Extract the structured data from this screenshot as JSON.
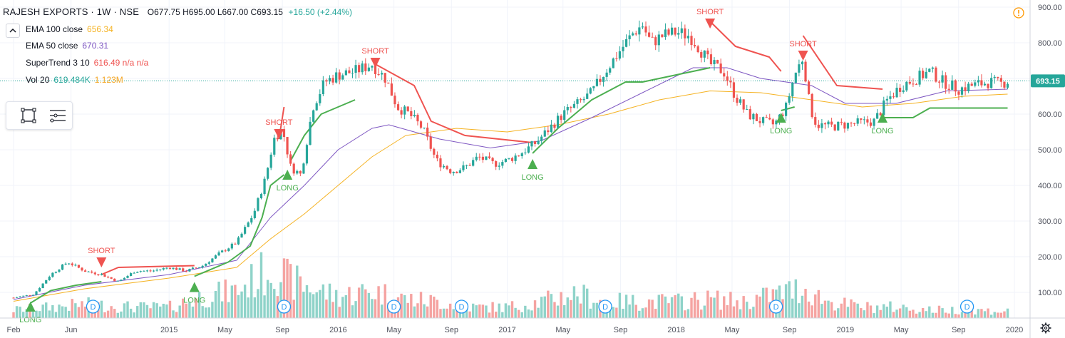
{
  "header": {
    "symbol": "RAJESH EXPORTS · 1W · NSE",
    "ohlc": "O677.75  H695.00  L667.00  C693.15",
    "change": "+16.50 (+2.44%)"
  },
  "indicators": [
    {
      "name": "EMA 100 close",
      "value": "656.34",
      "color": "#f5b324"
    },
    {
      "name": "EMA 50 close",
      "value": "670.31",
      "color": "#7e57c2"
    },
    {
      "name": "SuperTrend 3 10",
      "value": "616.49  n/a  n/a",
      "color": "#ef5350"
    },
    {
      "name": "Vol 20",
      "value": "619.484K",
      "value2": "1.123M",
      "color": "#26a69a",
      "color2": "#f5a623"
    }
  ],
  "price_tag": "693.15",
  "colors": {
    "up": "#26a69a",
    "down": "#ef5350",
    "vol_up": "#8fd3c9",
    "vol_down": "#f5a3a1",
    "ema100": "#f5b324",
    "ema50": "#7e57c2",
    "st_long": "#4caf50",
    "st_short": "#ef5350",
    "grid": "#f0f3fa",
    "axis_text": "#50535e"
  },
  "icons": [
    "warning-icon",
    "gear-icon",
    "rectangle-tool-icon",
    "hamburger-tool-icon",
    "chevron-collapse-icon"
  ],
  "chart_data": {
    "type": "candlestick",
    "title": "",
    "y_ticks": [
      "900.00",
      "800.00",
      "700.00",
      "600.00",
      "500.00",
      "400.00",
      "300.00",
      "200.00",
      "100.00"
    ],
    "y_tick_values": [
      900,
      800,
      700,
      600,
      500,
      400,
      300,
      200,
      100
    ],
    "ylim": [
      0,
      914
    ],
    "xlim": [
      2014.08,
      2020.0
    ],
    "x_ticks": [
      {
        "label": "Feb",
        "t": 2014.08
      },
      {
        "label": "Jun",
        "t": 2014.42
      },
      {
        "label": "2015",
        "t": 2015.0
      },
      {
        "label": "May",
        "t": 2015.33
      },
      {
        "label": "Sep",
        "t": 2015.67
      },
      {
        "label": "2016",
        "t": 2016.0
      },
      {
        "label": "May",
        "t": 2016.33
      },
      {
        "label": "Sep",
        "t": 2016.67
      },
      {
        "label": "2017",
        "t": 2017.0
      },
      {
        "label": "May",
        "t": 2017.33
      },
      {
        "label": "Sep",
        "t": 2017.67
      },
      {
        "label": "2018",
        "t": 2018.0
      },
      {
        "label": "May",
        "t": 2018.33
      },
      {
        "label": "Sep",
        "t": 2018.67
      },
      {
        "label": "2019",
        "t": 2019.0
      },
      {
        "label": "May",
        "t": 2019.33
      },
      {
        "label": "Sep",
        "t": 2019.67
      },
      {
        "label": "2020",
        "t": 2020.0
      }
    ],
    "price_path": [
      [
        2014.08,
        85
      ],
      [
        2014.2,
        95
      ],
      [
        2014.3,
        150
      ],
      [
        2014.4,
        185
      ],
      [
        2014.5,
        160
      ],
      [
        2014.6,
        150
      ],
      [
        2014.7,
        130
      ],
      [
        2014.8,
        160
      ],
      [
        2014.9,
        160
      ],
      [
        2015.0,
        170
      ],
      [
        2015.1,
        160
      ],
      [
        2015.2,
        175
      ],
      [
        2015.3,
        210
      ],
      [
        2015.4,
        240
      ],
      [
        2015.5,
        320
      ],
      [
        2015.57,
        420
      ],
      [
        2015.62,
        530
      ],
      [
        2015.67,
        560
      ],
      [
        2015.72,
        450
      ],
      [
        2015.78,
        430
      ],
      [
        2015.85,
        620
      ],
      [
        2015.92,
        690
      ],
      [
        2016.0,
        710
      ],
      [
        2016.1,
        720
      ],
      [
        2016.2,
        740
      ],
      [
        2016.28,
        700
      ],
      [
        2016.35,
        620
      ],
      [
        2016.42,
        600
      ],
      [
        2016.5,
        560
      ],
      [
        2016.58,
        470
      ],
      [
        2016.67,
        440
      ],
      [
        2016.75,
        450
      ],
      [
        2016.83,
        480
      ],
      [
        2016.92,
        460
      ],
      [
        2017.0,
        470
      ],
      [
        2017.08,
        490
      ],
      [
        2017.17,
        520
      ],
      [
        2017.25,
        560
      ],
      [
        2017.33,
        600
      ],
      [
        2017.42,
        630
      ],
      [
        2017.5,
        660
      ],
      [
        2017.58,
        720
      ],
      [
        2017.67,
        780
      ],
      [
        2017.75,
        830
      ],
      [
        2017.8,
        850
      ],
      [
        2017.85,
        800
      ],
      [
        2017.92,
        820
      ],
      [
        2018.0,
        830
      ],
      [
        2018.08,
        820
      ],
      [
        2018.13,
        790
      ],
      [
        2018.2,
        740
      ],
      [
        2018.28,
        720
      ],
      [
        2018.35,
        650
      ],
      [
        2018.42,
        600
      ],
      [
        2018.5,
        580
      ],
      [
        2018.58,
        570
      ],
      [
        2018.65,
        620
      ],
      [
        2018.7,
        710
      ],
      [
        2018.75,
        760
      ],
      [
        2018.79,
        620
      ],
      [
        2018.83,
        570
      ],
      [
        2018.92,
        565
      ],
      [
        2019.0,
        570
      ],
      [
        2019.08,
        575
      ],
      [
        2019.17,
        580
      ],
      [
        2019.25,
        640
      ],
      [
        2019.33,
        680
      ],
      [
        2019.42,
        700
      ],
      [
        2019.5,
        720
      ],
      [
        2019.58,
        690
      ],
      [
        2019.67,
        670
      ],
      [
        2019.75,
        680
      ],
      [
        2019.85,
        690
      ],
      [
        2019.92,
        685
      ],
      [
        2019.96,
        693
      ]
    ],
    "ema100": [
      [
        2014.08,
        75
      ],
      [
        2014.5,
        110
      ],
      [
        2015.0,
        140
      ],
      [
        2015.4,
        170
      ],
      [
        2015.6,
        250
      ],
      [
        2015.8,
        320
      ],
      [
        2016.0,
        400
      ],
      [
        2016.2,
        480
      ],
      [
        2016.4,
        540
      ],
      [
        2016.7,
        560
      ],
      [
        2017.0,
        550
      ],
      [
        2017.3,
        570
      ],
      [
        2017.6,
        600
      ],
      [
        2017.9,
        640
      ],
      [
        2018.2,
        665
      ],
      [
        2018.5,
        660
      ],
      [
        2018.8,
        640
      ],
      [
        2019.1,
        620
      ],
      [
        2019.4,
        630
      ],
      [
        2019.7,
        650
      ],
      [
        2019.96,
        656
      ]
    ],
    "ema50": [
      [
        2014.08,
        80
      ],
      [
        2014.5,
        120
      ],
      [
        2015.0,
        150
      ],
      [
        2015.4,
        190
      ],
      [
        2015.6,
        310
      ],
      [
        2015.8,
        400
      ],
      [
        2016.0,
        500
      ],
      [
        2016.2,
        560
      ],
      [
        2016.3,
        570
      ],
      [
        2016.6,
        530
      ],
      [
        2016.9,
        505
      ],
      [
        2017.2,
        525
      ],
      [
        2017.5,
        590
      ],
      [
        2017.8,
        660
      ],
      [
        2018.1,
        730
      ],
      [
        2018.3,
        730
      ],
      [
        2018.5,
        700
      ],
      [
        2018.8,
        680
      ],
      [
        2019.0,
        630
      ],
      [
        2019.3,
        630
      ],
      [
        2019.6,
        665
      ],
      [
        2019.96,
        670
      ]
    ],
    "supertrend_long": [
      [
        [
          2014.18,
          70
        ],
        [
          2014.3,
          105
        ],
        [
          2014.45,
          120
        ],
        [
          2014.6,
          130
        ]
      ],
      [
        [
          2015.15,
          145
        ],
        [
          2015.35,
          185
        ],
        [
          2015.48,
          230
        ],
        [
          2015.55,
          310
        ],
        [
          2015.6,
          400
        ],
        [
          2015.68,
          430
        ]
      ],
      [
        [
          2015.72,
          470
        ],
        [
          2015.8,
          540
        ],
        [
          2015.9,
          600
        ],
        [
          2016.1,
          640
        ]
      ],
      [
        [
          2017.15,
          490
        ],
        [
          2017.3,
          560
        ],
        [
          2017.5,
          640
        ],
        [
          2017.7,
          690
        ],
        [
          2017.8,
          690
        ],
        [
          2018.1,
          720
        ],
        [
          2018.2,
          730
        ]
      ],
      [
        [
          2018.62,
          610
        ],
        [
          2018.7,
          620
        ]
      ],
      [
        [
          2019.22,
          590
        ],
        [
          2019.4,
          590
        ],
        [
          2019.5,
          617
        ],
        [
          2019.96,
          617
        ]
      ]
    ],
    "supertrend_short": [
      [
        [
          2014.6,
          150
        ],
        [
          2014.7,
          170
        ],
        [
          2015.15,
          175
        ]
      ],
      [
        [
          2015.65,
          530
        ],
        [
          2015.68,
          620
        ]
      ],
      [
        [
          2016.22,
          740
        ],
        [
          2016.45,
          680
        ],
        [
          2016.55,
          580
        ],
        [
          2016.75,
          540
        ],
        [
          2017.15,
          520
        ]
      ],
      [
        [
          2018.2,
          860
        ],
        [
          2018.35,
          790
        ],
        [
          2018.55,
          760
        ],
        [
          2018.62,
          720
        ]
      ],
      [
        [
          2018.75,
          820
        ],
        [
          2018.95,
          680
        ],
        [
          2019.22,
          670
        ]
      ]
    ],
    "signals": [
      {
        "type": "LONG",
        "t": 2014.18,
        "price": 60
      },
      {
        "type": "SHORT",
        "t": 2014.6,
        "price": 210
      },
      {
        "type": "LONG",
        "t": 2015.15,
        "price": 115
      },
      {
        "type": "SHORT",
        "t": 2015.65,
        "price": 570
      },
      {
        "type": "LONG",
        "t": 2015.7,
        "price": 430
      },
      {
        "type": "SHORT",
        "t": 2016.22,
        "price": 770
      },
      {
        "type": "LONG",
        "t": 2017.15,
        "price": 460
      },
      {
        "type": "SHORT",
        "t": 2018.2,
        "price": 880
      },
      {
        "type": "LONG",
        "t": 2018.62,
        "price": 590
      },
      {
        "type": "SHORT",
        "t": 2018.75,
        "price": 790
      },
      {
        "type": "LONG",
        "t": 2019.22,
        "price": 590
      }
    ],
    "dividend_markers": [
      2014.55,
      2015.68,
      2016.33,
      2016.73,
      2017.58,
      2018.59,
      2019.72
    ],
    "volume_profile": [
      [
        2014.08,
        0.15
      ],
      [
        2014.3,
        0.2
      ],
      [
        2014.5,
        0.25
      ],
      [
        2014.8,
        0.2
      ],
      [
        2015.0,
        0.2
      ],
      [
        2015.2,
        0.4
      ],
      [
        2015.4,
        0.5
      ],
      [
        2015.55,
        0.8
      ],
      [
        2015.62,
        1.0
      ],
      [
        2015.7,
        0.7
      ],
      [
        2015.85,
        0.55
      ],
      [
        2016.0,
        0.4
      ],
      [
        2016.2,
        0.5
      ],
      [
        2016.4,
        0.35
      ],
      [
        2016.6,
        0.3
      ],
      [
        2016.8,
        0.2
      ],
      [
        2017.0,
        0.2
      ],
      [
        2017.2,
        0.3
      ],
      [
        2017.4,
        0.45
      ],
      [
        2017.6,
        0.3
      ],
      [
        2017.8,
        0.3
      ],
      [
        2018.0,
        0.3
      ],
      [
        2018.2,
        0.35
      ],
      [
        2018.4,
        0.3
      ],
      [
        2018.6,
        0.45
      ],
      [
        2018.75,
        0.55
      ],
      [
        2018.9,
        0.3
      ],
      [
        2019.1,
        0.2
      ],
      [
        2019.3,
        0.2
      ],
      [
        2019.5,
        0.15
      ],
      [
        2019.7,
        0.15
      ],
      [
        2019.96,
        0.12
      ]
    ],
    "signal_labels": {
      "long": "LONG",
      "short": "SHORT"
    },
    "dividend_label": "D"
  }
}
